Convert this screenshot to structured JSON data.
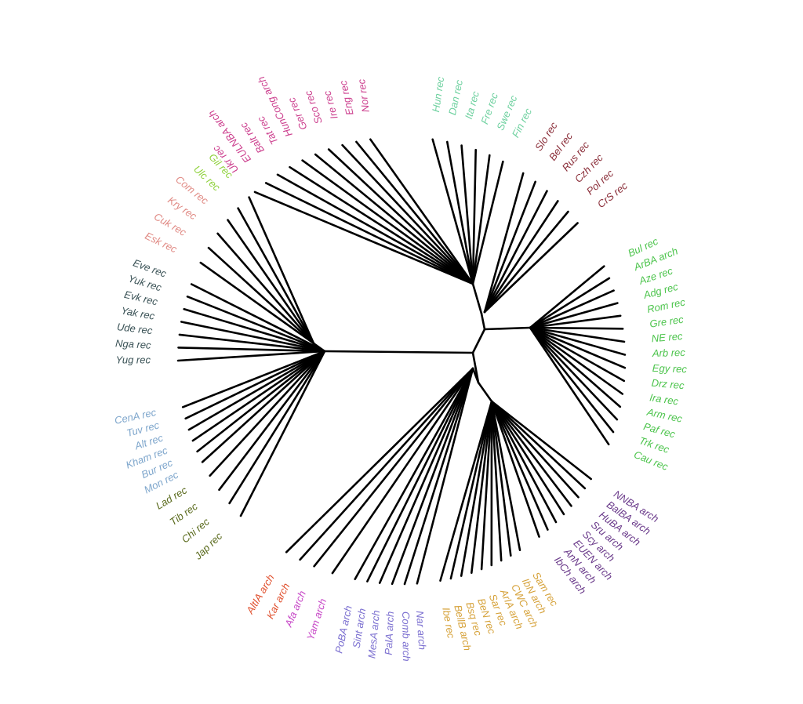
{
  "groups": [
    {
      "id": "northwest_europe",
      "color": "#cc3f8e",
      "clade": "c-north",
      "labels": [
        "Nor rec",
        "Eng rec",
        "Ire rec",
        "Sco rec",
        "Ger rec",
        "HunCong arch",
        "Tat rec",
        "Balt rec",
        "EULNBA arch",
        "Ukr rec"
      ]
    },
    {
      "id": "nordic",
      "color": "#6fd1a0",
      "clade": "c-north",
      "labels": [
        "Hun rec",
        "Dan rec",
        "Ita rec",
        "Fre rec",
        "Swe rec",
        "Fin rec"
      ]
    },
    {
      "id": "slavic",
      "color": "#8b2f3a",
      "clade": "c-slav",
      "labels": [
        "Slo rec",
        "Bel rec",
        "Rus rec",
        "Czh rec",
        "Pol rec",
        "CrS rec"
      ]
    },
    {
      "id": "west_asia",
      "color": "#4cc44c",
      "clade": "c-east",
      "labels": [
        "Bul rec",
        "ArBA arch",
        "Aze rec",
        "Adg rec",
        "Rom rec",
        "Gre rec",
        "NE rec",
        "Arb rec",
        "Egy rec",
        "Drz rec",
        "Ira rec",
        "Arm rec",
        "Paf rec",
        "Trk rec",
        "Cau rec"
      ]
    },
    {
      "id": "steppe_archaic",
      "color": "#6a3a8a",
      "clade": "c-se",
      "labels": [
        "NNBA arch",
        "BalBA arch",
        "HuBA arch",
        "Sru arch",
        "Scy arch",
        "EUEN arch",
        "AnN arch",
        "IbCh arch"
      ]
    },
    {
      "id": "iberia_archaic",
      "color": "#d6a23a",
      "clade": "c-se",
      "labels": [
        "Sam rec",
        "IbN arch",
        "CWC arch",
        "ArIA arch",
        "Sar rec",
        "BeN rec",
        "Bsq rec",
        "BellB arch",
        "Ibe rec"
      ]
    },
    {
      "id": "central_asia_archaic",
      "color": "#7b6fd0",
      "clade": "c-south",
      "labels": [
        "Nar arch",
        "Comb arch",
        "PalA arch",
        "MesA arch",
        "Sint arch",
        "PoBA arch"
      ]
    },
    {
      "id": "yamnaya",
      "color": "#c748c7",
      "clade": "c-south",
      "labels": [
        "Yam arch",
        "Afa arch"
      ]
    },
    {
      "id": "altai",
      "color": "#e0502e",
      "clade": "c-south",
      "labels": [
        "Kar arch",
        "AltIA arch"
      ]
    },
    {
      "id": "east_asia",
      "color": "#5a6a1c",
      "clade": "c-west",
      "labels": [
        "Jap rec",
        "Chi rec",
        "Tib rec",
        "Lad rec"
      ]
    },
    {
      "id": "inner_asia",
      "color": "#7ea6cc",
      "clade": "c-west",
      "labels": [
        "Mon rec",
        "Bur rec",
        "Kham rec",
        "Alt rec",
        "Tuv rec",
        "CenA rec"
      ]
    },
    {
      "id": "siberia",
      "color": "#3a5256",
      "clade": "c-west",
      "labels": [
        "Yug rec",
        "Nga rec",
        "Ude rec",
        "Yak rec",
        "Evk rec",
        "Yuk rec",
        "Eve rec"
      ]
    },
    {
      "id": "north_asia",
      "color": "#e08a84",
      "clade": "c-nw",
      "labels": [
        "Esk rec",
        "Cuk rec",
        "Kry rec",
        "Com rec"
      ]
    },
    {
      "id": "chukotka",
      "color": "#8ed13a",
      "clade": "c-nw",
      "labels": [
        "Ulc rec",
        "Gil rec"
      ]
    }
  ]
}
